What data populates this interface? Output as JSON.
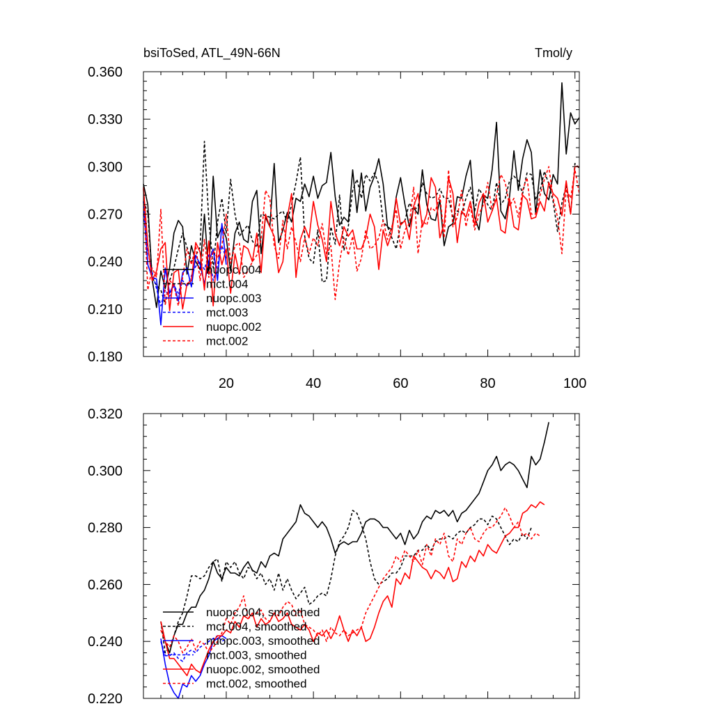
{
  "chart_data": [
    {
      "type": "line",
      "title_left": "bsiToSed, ATL_49N-66N",
      "title_right": "Tmol/y",
      "xlabel": "",
      "ylabel": "",
      "xlim": [
        1,
        101
      ],
      "ylim": [
        0.18,
        0.36
      ],
      "yticks": [
        "0.180",
        "0.210",
        "0.240",
        "0.270",
        "0.300",
        "0.330",
        "0.360"
      ],
      "xticks": [
        "20",
        "40",
        "60",
        "80",
        "100"
      ],
      "legend": [
        "nuopc.004",
        "mct.004",
        "nuopc.003",
        "mct.003",
        "nuopc.002",
        "mct.002"
      ],
      "series": [
        {
          "name": "nuopc.004",
          "color": "#000000",
          "dash": "solid",
          "x_start": 1,
          "values": [
            0.289,
            0.276,
            0.229,
            0.211,
            0.234,
            0.223,
            0.236,
            0.258,
            0.266,
            0.262,
            0.232,
            0.25,
            0.24,
            0.235,
            0.27,
            0.232,
            0.294,
            0.255,
            0.262,
            0.255,
            0.234,
            0.258,
            0.265,
            0.254,
            0.252,
            0.278,
            0.285,
            0.245,
            0.268,
            0.262,
            0.302,
            0.252,
            0.26,
            0.271,
            0.265,
            0.28,
            0.278,
            0.289,
            0.281,
            0.294,
            0.28,
            0.288,
            0.29,
            0.309,
            0.281,
            0.263,
            0.268,
            0.265,
            0.298,
            0.271,
            0.296,
            0.272,
            0.287,
            0.294,
            0.305,
            0.289,
            0.262,
            0.26,
            0.281,
            0.293,
            0.276,
            0.262,
            0.274,
            0.27,
            0.298,
            0.276,
            0.267,
            0.266,
            0.279,
            0.25,
            0.262,
            0.264,
            0.281,
            0.28,
            0.294,
            0.304,
            0.268,
            0.26,
            0.282,
            0.28,
            0.298,
            0.328,
            0.272,
            0.267,
            0.281,
            0.31,
            0.285,
            0.305,
            0.317,
            0.309,
            0.27,
            0.298,
            0.283,
            0.279,
            0.295,
            0.289,
            0.353,
            0.308,
            0.334,
            0.327,
            0.331
          ]
        },
        {
          "name": "mct.004",
          "color": "#000000",
          "dash": "dash",
          "x_start": 1,
          "values": [
            0.278,
            0.271,
            0.23,
            0.225,
            0.222,
            0.213,
            0.228,
            0.236,
            0.248,
            0.258,
            0.249,
            0.24,
            0.244,
            0.249,
            0.316,
            0.266,
            0.236,
            0.265,
            0.28,
            0.258,
            0.292,
            0.27,
            0.256,
            0.26,
            0.263,
            0.253,
            0.249,
            0.27,
            0.269,
            0.268,
            0.267,
            0.27,
            0.272,
            0.265,
            0.276,
            0.29,
            0.306,
            0.256,
            0.242,
            0.239,
            0.26,
            0.227,
            0.228,
            0.262,
            0.251,
            0.282,
            0.247,
            0.262,
            0.285,
            0.292,
            0.28,
            0.295,
            0.291,
            0.296,
            0.289,
            0.265,
            0.262,
            0.255,
            0.248,
            0.264,
            0.266,
            0.277,
            0.272,
            0.275,
            0.29,
            0.283,
            0.28,
            0.281,
            0.286,
            0.28,
            0.28,
            0.268,
            0.272,
            0.27,
            0.28,
            0.287,
            0.272,
            0.286,
            0.281,
            0.276,
            0.272,
            0.29,
            0.276,
            0.28,
            0.291,
            0.294,
            0.291,
            0.283,
            0.296,
            0.295,
            0.279,
            0.285,
            0.297,
            0.289,
            0.278,
            0.259,
            0.277,
            0.288,
            0.27,
            0.302,
            0.299
          ]
        },
        {
          "name": "nuopc.003",
          "color": "#0000ff",
          "dash": "solid",
          "x_start": 1,
          "values": [
            0.278,
            0.238,
            0.23,
            0.229,
            0.2,
            0.236,
            0.22,
            0.226,
            0.215,
            0.233,
            0.236,
            0.224,
            0.244,
            0.238,
            0.226,
            0.24,
            0.248,
            0.228,
            0.264,
            0.238
          ]
        },
        {
          "name": "mct.003",
          "color": "#0000ff",
          "dash": "dash",
          "x_start": 1,
          "values": [
            0.27,
            0.247,
            0.233,
            0.223,
            0.212,
            0.222,
            0.218,
            0.225,
            0.22,
            0.228,
            0.224,
            0.231,
            0.237,
            0.24,
            0.235,
            0.245,
            0.228,
            0.238,
            0.25,
            0.242
          ]
        },
        {
          "name": "nuopc.002",
          "color": "#ff0000",
          "dash": "solid",
          "x_start": 1,
          "values": [
            0.287,
            0.25,
            0.228,
            0.234,
            0.248,
            0.252,
            0.209,
            0.233,
            0.235,
            0.21,
            0.226,
            0.228,
            0.252,
            0.246,
            0.222,
            0.253,
            0.212,
            0.252,
            0.238,
            0.248,
            0.22,
            0.245,
            0.232,
            0.25,
            0.248,
            0.24,
            0.258,
            0.233,
            0.27,
            0.262,
            0.256,
            0.233,
            0.24,
            0.268,
            0.283,
            0.23,
            0.254,
            0.262,
            0.255,
            0.278,
            0.263,
            0.254,
            0.24,
            0.278,
            0.258,
            0.25,
            0.262,
            0.256,
            0.26,
            0.248,
            0.248,
            0.255,
            0.27,
            0.262,
            0.235,
            0.26,
            0.25,
            0.258,
            0.28,
            0.263,
            0.266,
            0.254,
            0.275,
            0.283,
            0.262,
            0.27,
            0.293,
            0.287,
            0.255,
            0.264,
            0.293,
            0.283,
            0.252,
            0.272,
            0.268,
            0.278,
            0.263,
            0.277,
            0.283,
            0.265,
            0.272,
            0.28,
            0.26,
            0.258,
            0.28,
            0.262,
            0.26,
            0.282,
            0.279,
            0.267,
            0.268,
            0.278,
            0.272,
            0.29,
            0.283,
            0.28,
            0.269,
            0.291,
            0.27,
            0.3,
            0.3
          ]
        },
        {
          "name": "mct.002",
          "color": "#ff0000",
          "dash": "dash",
          "x_start": 1,
          "values": [
            0.286,
            0.222,
            0.236,
            0.23,
            0.273,
            0.213,
            0.228,
            0.225,
            0.212,
            0.23,
            0.248,
            0.238,
            0.25,
            0.228,
            0.254,
            0.23,
            0.247,
            0.242,
            0.25,
            0.27,
            0.239,
            0.25,
            0.252,
            0.23,
            0.234,
            0.24,
            0.244,
            0.254,
            0.285,
            0.28,
            0.25,
            0.242,
            0.266,
            0.248,
            0.262,
            0.252,
            0.24,
            0.255,
            0.245,
            0.255,
            0.25,
            0.264,
            0.245,
            0.25,
            0.216,
            0.24,
            0.255,
            0.244,
            0.256,
            0.234,
            0.242,
            0.26,
            0.248,
            0.25,
            0.255,
            0.266,
            0.254,
            0.262,
            0.273,
            0.248,
            0.26,
            0.264,
            0.287,
            0.245,
            0.266,
            0.263,
            0.274,
            0.272,
            0.282,
            0.255,
            0.298,
            0.262,
            0.268,
            0.285,
            0.262,
            0.275,
            0.26,
            0.27,
            0.276,
            0.29,
            0.272,
            0.282,
            0.295,
            0.29,
            0.275,
            0.28,
            0.268,
            0.285,
            0.293,
            0.27,
            0.27,
            0.282,
            0.292,
            0.3,
            0.28,
            0.268,
            0.245,
            0.286,
            0.28,
            0.298,
            0.283
          ]
        }
      ]
    },
    {
      "type": "line",
      "xlim": [
        1,
        101
      ],
      "ylim": [
        0.22,
        0.32
      ],
      "yticks": [
        "0.220",
        "0.240",
        "0.260",
        "0.280",
        "0.300",
        "0.320"
      ],
      "legend": [
        "nuopc.004, smoothed",
        "mct.004, smoothed",
        "nuopc.003, smoothed",
        "mct.003, smoothed",
        "nuopc.002, smoothed",
        "mct.002, smoothed"
      ],
      "series": [
        {
          "name": "nuopc.004, smoothed",
          "color": "#000000",
          "dash": "solid",
          "x_start": 5,
          "values": [
            0.247,
            0.24,
            0.236,
            0.242,
            0.246,
            0.246,
            0.25,
            0.252,
            0.252,
            0.256,
            0.258,
            0.262,
            0.268,
            0.264,
            0.262,
            0.266,
            0.264,
            0.264,
            0.263,
            0.266,
            0.268,
            0.265,
            0.264,
            0.268,
            0.266,
            0.27,
            0.271,
            0.27,
            0.276,
            0.278,
            0.28,
            0.282,
            0.288,
            0.285,
            0.284,
            0.282,
            0.28,
            0.282,
            0.28,
            0.276,
            0.271,
            0.274,
            0.275,
            0.274,
            0.275,
            0.275,
            0.278,
            0.282,
            0.283,
            0.283,
            0.282,
            0.28,
            0.28,
            0.278,
            0.276,
            0.278,
            0.274,
            0.279,
            0.276,
            0.278,
            0.282,
            0.284,
            0.283,
            0.286,
            0.285,
            0.286,
            0.284,
            0.286,
            0.282,
            0.285,
            0.286,
            0.288,
            0.29,
            0.292,
            0.296,
            0.3,
            0.302,
            0.305,
            0.3,
            0.302,
            0.303,
            0.302,
            0.3,
            0.297,
            0.294,
            0.305,
            0.302,
            0.304,
            0.31,
            0.317
          ]
        },
        {
          "name": "mct.004, smoothed",
          "color": "#000000",
          "dash": "dash",
          "x_start": 5,
          "values": [
            0.247,
            0.236,
            0.238,
            0.242,
            0.247,
            0.25,
            0.256,
            0.263,
            0.263,
            0.262,
            0.263,
            0.266,
            0.268,
            0.269,
            0.261,
            0.268,
            0.266,
            0.268,
            0.264,
            0.262,
            0.266,
            0.265,
            0.262,
            0.264,
            0.26,
            0.262,
            0.258,
            0.264,
            0.258,
            0.262,
            0.258,
            0.255,
            0.257,
            0.259,
            0.253,
            0.254,
            0.256,
            0.257,
            0.256,
            0.262,
            0.27,
            0.275,
            0.277,
            0.28,
            0.286,
            0.285,
            0.281,
            0.276,
            0.268,
            0.262,
            0.26,
            0.261,
            0.262,
            0.264,
            0.264,
            0.266,
            0.27,
            0.27,
            0.27,
            0.272,
            0.272,
            0.274,
            0.272,
            0.275,
            0.276,
            0.276,
            0.277,
            0.276,
            0.278,
            0.279,
            0.278,
            0.28,
            0.281,
            0.283,
            0.283,
            0.281,
            0.284,
            0.283,
            0.28,
            0.277,
            0.274,
            0.276,
            0.275,
            0.278,
            0.276,
            0.28
          ]
        },
        {
          "name": "nuopc.003, smoothed",
          "color": "#0000ff",
          "dash": "solid",
          "x_start": 5,
          "values": [
            0.241,
            0.232,
            0.225,
            0.222,
            0.22,
            0.225,
            0.224,
            0.228,
            0.226,
            0.228,
            0.232,
            0.235,
            0.24,
            0.241,
            0.242,
            0.241
          ]
        },
        {
          "name": "mct.003, smoothed",
          "color": "#0000ff",
          "dash": "dash",
          "x_start": 5,
          "values": [
            0.24,
            0.235,
            0.235,
            0.236,
            0.234,
            0.233,
            0.236,
            0.237,
            0.236,
            0.238,
            0.239,
            0.24,
            0.241,
            0.242,
            0.24,
            0.241
          ]
        },
        {
          "name": "nuopc.002, smoothed",
          "color": "#ff0000",
          "dash": "solid",
          "x_start": 5,
          "values": [
            0.247,
            0.24,
            0.234,
            0.234,
            0.232,
            0.23,
            0.228,
            0.232,
            0.23,
            0.229,
            0.233,
            0.237,
            0.24,
            0.242,
            0.242,
            0.244,
            0.243,
            0.247,
            0.245,
            0.249,
            0.248,
            0.25,
            0.245,
            0.248,
            0.246,
            0.247,
            0.25,
            0.247,
            0.248,
            0.25,
            0.246,
            0.245,
            0.244,
            0.246,
            0.244,
            0.24,
            0.243,
            0.242,
            0.244,
            0.241,
            0.244,
            0.249,
            0.244,
            0.24,
            0.244,
            0.242,
            0.245,
            0.24,
            0.241,
            0.245,
            0.25,
            0.254,
            0.256,
            0.252,
            0.262,
            0.26,
            0.264,
            0.262,
            0.27,
            0.268,
            0.266,
            0.265,
            0.262,
            0.265,
            0.264,
            0.262,
            0.266,
            0.261,
            0.262,
            0.268,
            0.266,
            0.27,
            0.268,
            0.272,
            0.27,
            0.274,
            0.272,
            0.271,
            0.274,
            0.277,
            0.278,
            0.28,
            0.28,
            0.285,
            0.286,
            0.288,
            0.287,
            0.289,
            0.288
          ]
        },
        {
          "name": "mct.002, smoothed",
          "color": "#ff0000",
          "dash": "dash",
          "x_start": 5,
          "values": [
            0.244,
            0.24,
            0.238,
            0.242,
            0.24,
            0.236,
            0.238,
            0.241,
            0.237,
            0.24,
            0.239,
            0.236,
            0.238,
            0.24,
            0.243,
            0.248,
            0.246,
            0.25,
            0.252,
            0.256,
            0.248,
            0.249,
            0.25,
            0.251,
            0.248,
            0.247,
            0.25,
            0.249,
            0.252,
            0.254,
            0.253,
            0.249,
            0.251,
            0.246,
            0.245,
            0.244,
            0.242,
            0.244,
            0.24,
            0.245,
            0.243,
            0.242,
            0.244,
            0.242,
            0.243,
            0.244,
            0.245,
            0.25,
            0.253,
            0.256,
            0.259,
            0.262,
            0.264,
            0.266,
            0.27,
            0.268,
            0.272,
            0.27,
            0.268,
            0.272,
            0.267,
            0.274,
            0.27,
            0.276,
            0.274,
            0.278,
            0.27,
            0.268,
            0.276,
            0.274,
            0.278,
            0.28,
            0.276,
            0.275,
            0.278,
            0.28,
            0.28,
            0.282,
            0.284,
            0.287,
            0.284,
            0.28,
            0.282,
            0.277,
            0.278,
            0.276,
            0.278,
            0.277
          ]
        }
      ]
    }
  ]
}
